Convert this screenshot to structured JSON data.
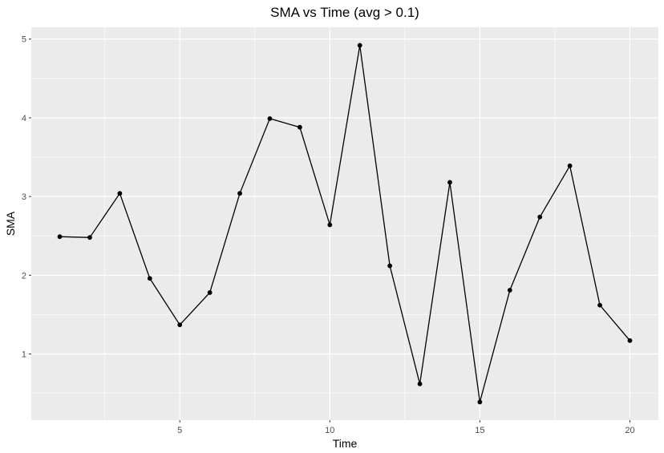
{
  "chart_data": {
    "type": "line",
    "title": "SMA vs Time (avg > 0.1)",
    "xlabel": "Time",
    "ylabel": "SMA",
    "x": [
      1,
      2,
      3,
      4,
      5,
      6,
      7,
      8,
      9,
      10,
      11,
      12,
      13,
      14,
      15,
      16,
      17,
      18,
      19,
      20
    ],
    "series": [
      {
        "values": [
          2.49,
          2.48,
          3.04,
          1.96,
          1.37,
          1.78,
          3.04,
          3.99,
          3.88,
          2.64,
          4.92,
          2.12,
          0.62,
          3.18,
          0.39,
          1.81,
          2.74,
          3.39,
          1.62,
          1.17
        ]
      }
    ],
    "xlim": [
      0.05,
      20.95
    ],
    "ylim": [
      0.16,
      5.15
    ],
    "x_ticks": [
      5,
      10,
      15,
      20
    ],
    "x_tick_labels": [
      "5",
      "10",
      "15",
      "20"
    ],
    "y_ticks": [
      1,
      2,
      3,
      4,
      5
    ],
    "y_tick_labels": [
      "1",
      "2",
      "3",
      "4",
      "5"
    ],
    "grid": true,
    "legend": "none",
    "colors": {
      "panel_background": "#ebebeb",
      "grid_major": "#ffffff",
      "line": "#000000",
      "points": "#000000"
    }
  }
}
